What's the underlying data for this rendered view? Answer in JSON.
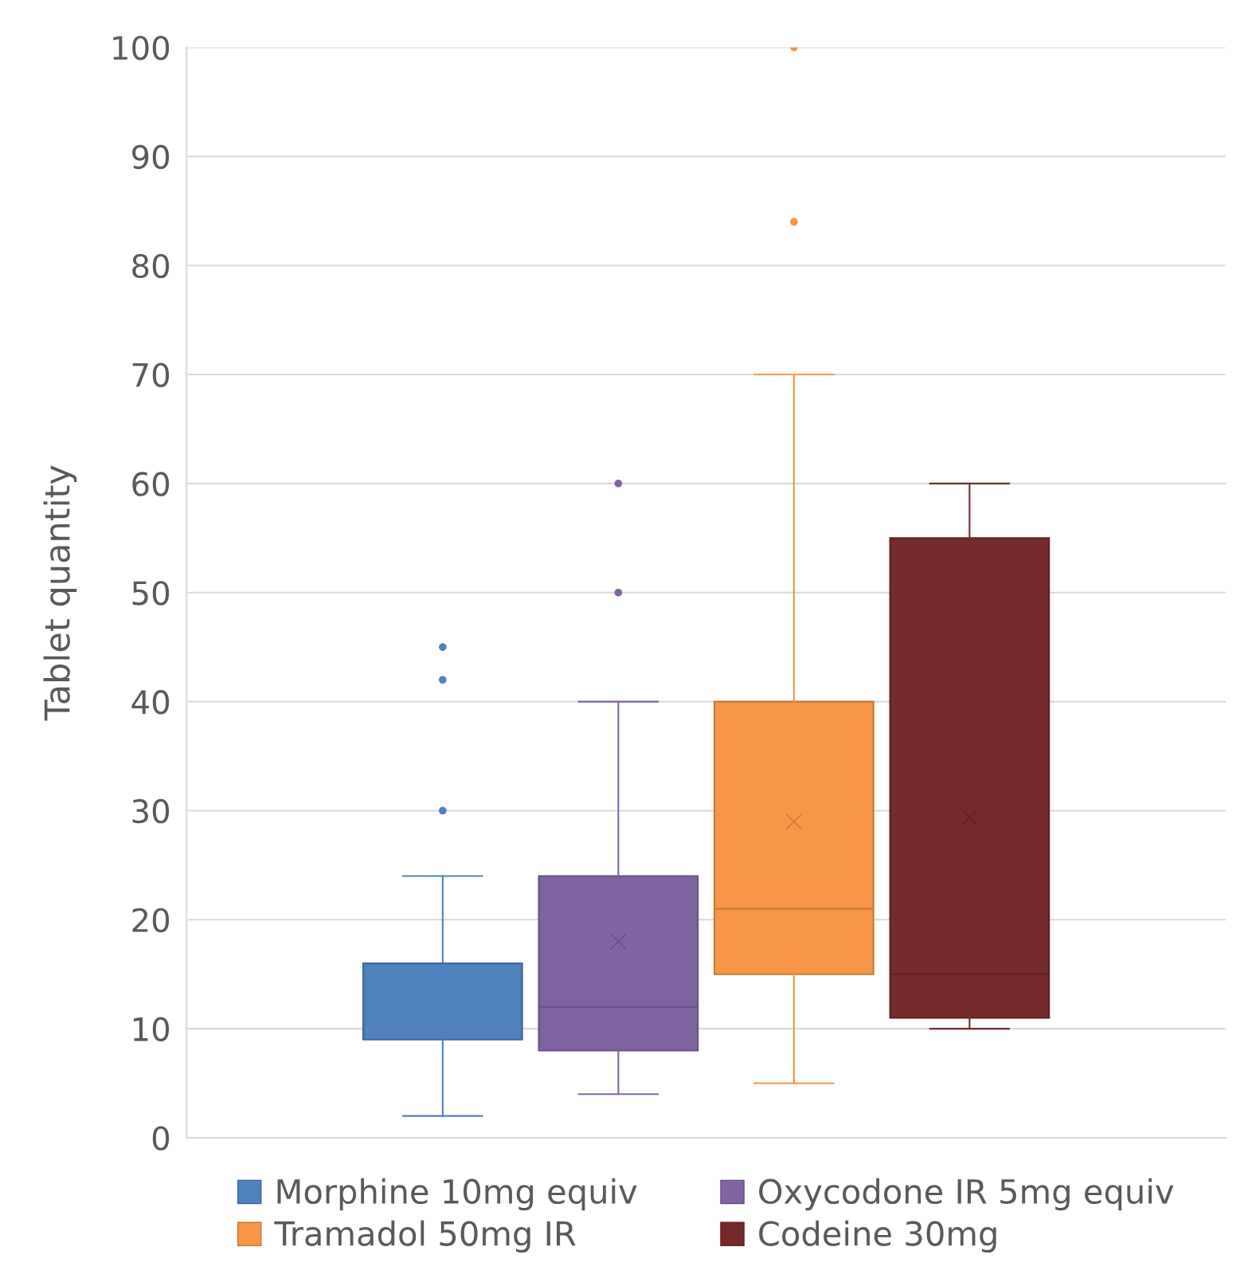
{
  "chart_data": {
    "type": "box",
    "ylabel": "Tablet quantity",
    "categories": [
      null
    ],
    "series": [
      {
        "name": "Morphine 10mg equiv",
        "color": "#4f81bd",
        "boxes": [
          {
            "low": 2,
            "q1": 9,
            "median": 16,
            "q3": 16,
            "high": 24,
            "outliers": [
              30,
              42,
              45
            ]
          }
        ]
      },
      {
        "name": "Oxycodone IR 5mg equiv",
        "color": "#8064a2",
        "boxes": [
          {
            "low": 4,
            "q1": 8,
            "median": 12,
            "q3": 24,
            "high": 40,
            "mean": 18,
            "outliers": [
              50,
              60
            ]
          }
        ]
      },
      {
        "name": "Tramadol 50mg IR",
        "color": "#f79646",
        "boxes": [
          {
            "low": 5,
            "q1": 15,
            "median": 21,
            "q3": 40,
            "high": 70,
            "mean": 29,
            "outliers": [
              84,
              100
            ]
          }
        ]
      },
      {
        "name": "Codeine 30mg",
        "color": "#772a2a",
        "boxes": [
          {
            "low": 10,
            "q1": 11,
            "median": 15,
            "q3": 55,
            "high": 60,
            "mean": 29.4
          }
        ]
      }
    ],
    "ylim": [
      0,
      100
    ],
    "yticks": [
      0,
      10,
      20,
      30,
      40,
      50,
      60,
      70,
      80,
      90,
      100
    ],
    "grid": "y",
    "legend": "bottom",
    "marker": "circle"
  }
}
